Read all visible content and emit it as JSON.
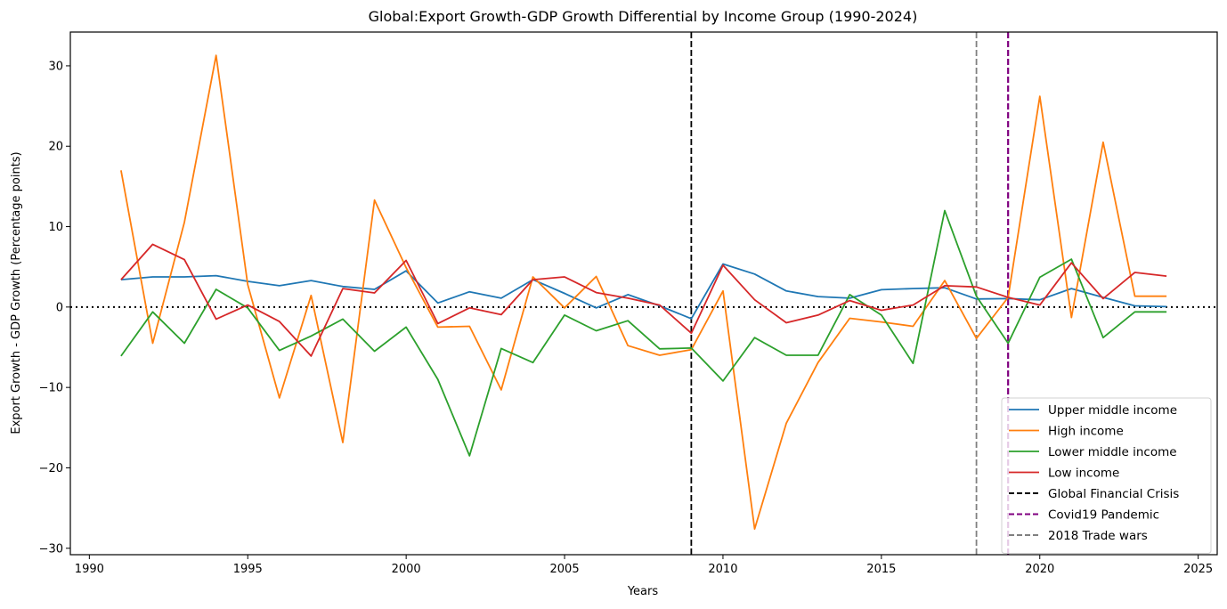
{
  "chart_data": {
    "type": "line",
    "title": "Global:Export Growth-GDP Growth Differential by Income Group (1990-2024)",
    "xlabel": "Years",
    "ylabel": "Export Growth - GDP Growth (Percentage points)",
    "xlim": [
      1989.4,
      2025.6
    ],
    "ylim": [
      -30.8,
      34.2
    ],
    "xticks": [
      1990,
      1995,
      2000,
      2005,
      2010,
      2015,
      2020,
      2025
    ],
    "xtick_labels": [
      "1990",
      "1995",
      "2000",
      "2005",
      "2010",
      "2015",
      "2020",
      "2025"
    ],
    "yticks": [
      -30,
      -20,
      -10,
      0,
      10,
      20,
      30
    ],
    "ytick_labels": [
      "−30",
      "−20",
      "−10",
      "0",
      "10",
      "20",
      "30"
    ],
    "grid": false,
    "legend_position": "bottom-right",
    "x": [
      1991,
      1992,
      1993,
      1994,
      1995,
      1996,
      1997,
      1998,
      1999,
      2000,
      2001,
      2002,
      2003,
      2004,
      2005,
      2006,
      2007,
      2008,
      2009,
      2010,
      2011,
      2012,
      2013,
      2014,
      2015,
      2016,
      2017,
      2018,
      2019,
      2020,
      2021,
      2022,
      2023,
      2024
    ],
    "series": [
      {
        "name": "Upper middle income",
        "color": "#1f77b4",
        "values": [
          3.4,
          3.75,
          3.75,
          3.9,
          3.2,
          2.65,
          3.3,
          2.55,
          2.2,
          4.5,
          0.5,
          1.9,
          1.1,
          3.4,
          1.7,
          -0.1,
          1.55,
          0.15,
          -1.45,
          5.35,
          4.1,
          2.0,
          1.3,
          1.1,
          2.15,
          2.3,
          2.4,
          1.0,
          1.05,
          0.9,
          2.3,
          1.2,
          0.15,
          0.05
        ]
      },
      {
        "name": "High income",
        "color": "#ff7f0e",
        "values": [
          17.0,
          -4.5,
          10.55,
          31.3,
          2.8,
          -11.3,
          1.45,
          -16.85,
          13.3,
          4.9,
          -2.5,
          -2.4,
          -10.3,
          3.75,
          -0.1,
          3.8,
          -4.8,
          -6.0,
          -5.3,
          2.0,
          -27.6,
          -14.45,
          -6.9,
          -1.4,
          -1.85,
          -2.4,
          3.3,
          -3.9,
          1.2,
          26.2,
          -1.3,
          20.5,
          1.35,
          1.35
        ]
      },
      {
        "name": "Lower middle income",
        "color": "#2ca02c",
        "values": [
          -6.1,
          -0.6,
          -4.5,
          2.2,
          -0.1,
          -5.4,
          -3.6,
          -1.5,
          -5.5,
          -2.5,
          -9.0,
          -18.5,
          -5.15,
          -6.9,
          -1.0,
          -2.95,
          -1.7,
          -5.2,
          -5.1,
          -9.2,
          -3.8,
          -6.0,
          -6.0,
          1.55,
          -1.0,
          -7.0,
          12.0,
          1.35,
          -4.5,
          3.7,
          5.95,
          -3.8,
          -0.6,
          -0.6
        ]
      },
      {
        "name": "Low income",
        "color": "#d62728",
        "values": [
          3.4,
          7.8,
          5.9,
          -1.5,
          0.25,
          -1.8,
          -6.1,
          2.3,
          1.75,
          5.8,
          -2.05,
          -0.1,
          -0.95,
          3.4,
          3.75,
          1.8,
          1.1,
          0.25,
          -3.25,
          5.2,
          0.9,
          -1.95,
          -1.0,
          0.8,
          -0.4,
          0.25,
          2.65,
          2.5,
          1.2,
          0.25,
          5.5,
          1.05,
          4.3,
          3.85
        ]
      }
    ],
    "reference_lines": [
      {
        "name": "Global Financial Crisis",
        "orientation": "vertical",
        "x": 2009,
        "color": "#000000",
        "style": "dashed"
      },
      {
        "name": "Covid19 Pandemic",
        "orientation": "vertical",
        "x": 2019,
        "color": "#800080",
        "style": "dashed"
      },
      {
        "name": "2018 Trade wars",
        "orientation": "vertical",
        "x": 2018,
        "color": "#808080",
        "style": "dashed"
      },
      {
        "name": "zero-line",
        "orientation": "horizontal",
        "y": 0,
        "color": "#000000",
        "style": "dotted"
      }
    ],
    "legend": [
      {
        "label": "Upper middle income",
        "color": "#1f77b4",
        "style": "solid"
      },
      {
        "label": "High income",
        "color": "#ff7f0e",
        "style": "solid"
      },
      {
        "label": "Lower middle income",
        "color": "#2ca02c",
        "style": "solid"
      },
      {
        "label": "Low income",
        "color": "#d62728",
        "style": "solid"
      },
      {
        "label": "Global Financial Crisis",
        "color": "#000000",
        "style": "dashed"
      },
      {
        "label": "Covid19 Pandemic",
        "color": "#800080",
        "style": "dashed"
      },
      {
        "label": "2018 Trade wars",
        "color": "#808080",
        "style": "dashed"
      }
    ]
  }
}
